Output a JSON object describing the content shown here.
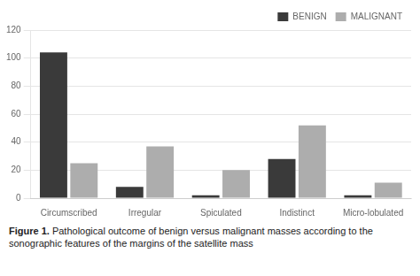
{
  "chart_data": {
    "type": "bar",
    "categories": [
      "Circumscribed",
      "Irregular",
      "Spiculated",
      "Indistinct",
      "Micro-lobulated"
    ],
    "series": [
      {
        "name": "BENIGN",
        "color": "#3a3a3a",
        "values": [
          104,
          8,
          2,
          28,
          2
        ]
      },
      {
        "name": "MALIGNANT",
        "color": "#adadad",
        "values": [
          25,
          37,
          20,
          52,
          11
        ]
      }
    ],
    "ylim": [
      0,
      120
    ],
    "yticks": [
      0,
      20,
      40,
      60,
      80,
      100,
      120
    ],
    "grid": true,
    "legend": "upper right",
    "annotations": [
      "Figure 1.",
      "Pathological outcome of benign versus malignant masses according to the sonographic features of the margins of the satellite mass"
    ]
  }
}
